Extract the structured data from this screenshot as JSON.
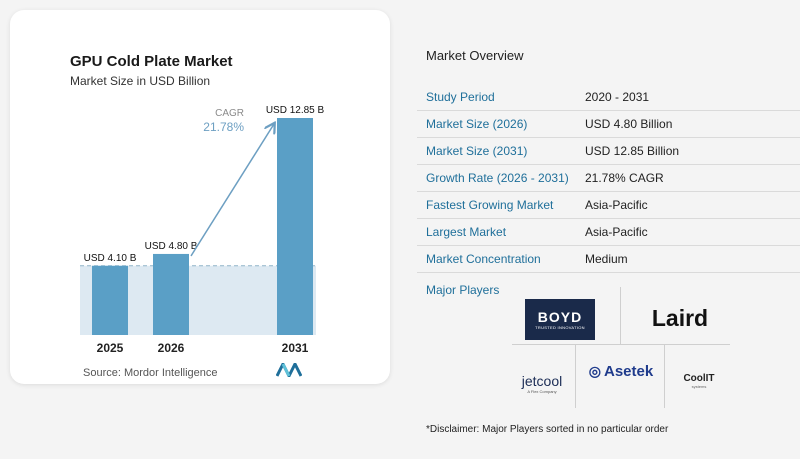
{
  "chart": {
    "title": "GPU Cold Plate Market",
    "subtitle": "Market Size in USD Billion",
    "cagr_label": "CAGR",
    "cagr_value": "21.78%",
    "source": "Source: Mordor Intelligence"
  },
  "chart_data": {
    "type": "bar",
    "categories": [
      "2025",
      "2026",
      "2031"
    ],
    "values": [
      4.1,
      4.8,
      12.85
    ],
    "data_labels": [
      "USD 4.10 B",
      "USD 4.80 B",
      "USD 12.85 B"
    ],
    "title": "GPU Cold Plate Market",
    "subtitle": "Market Size in USD Billion",
    "xlabel": "",
    "ylabel": "",
    "grid": false,
    "colors": {
      "bar": "#5a9fc6",
      "band": "#dde9f2",
      "baseline": "#8fb4c9",
      "arrow": "#6d9fc2"
    }
  },
  "overview": {
    "title": "Market Overview",
    "rows": [
      {
        "label": "Study Period",
        "value": "2020 - 2031"
      },
      {
        "label": "Market Size (2026)",
        "value": "USD 4.80 Billion"
      },
      {
        "label": "Market Size (2031)",
        "value": "USD 12.85 Billion"
      },
      {
        "label": "Growth Rate (2026 - 2031)",
        "value": "21.78% CAGR"
      },
      {
        "label": "Fastest Growing Market",
        "value": "Asia-Pacific"
      },
      {
        "label": "Largest Market",
        "value": "Asia-Pacific"
      },
      {
        "label": "Market Concentration",
        "value": "Medium"
      }
    ]
  },
  "players": {
    "label": "Major Players",
    "boyd": {
      "name": "BOYD",
      "tagline": "TRUSTED INNOVATION"
    },
    "laird": {
      "name": "Laird"
    },
    "jetcool": {
      "name": "jetcool",
      "tagline": "A Flex Company"
    },
    "asetek": {
      "name": "Asetek"
    },
    "coolit": {
      "name": "CoolIT",
      "tagline": "systems"
    }
  },
  "disclaimer": "*Disclaimer: Major Players sorted in no particular order"
}
